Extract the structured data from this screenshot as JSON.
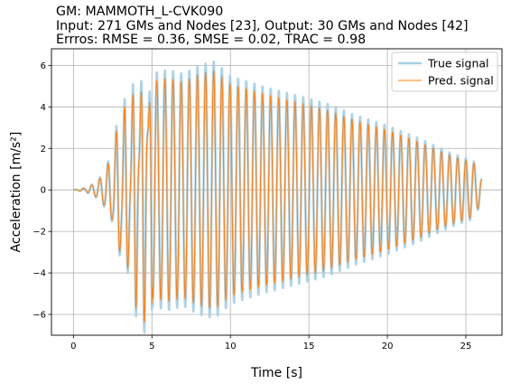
{
  "chart_data": {
    "type": "line",
    "title_lines": [
      "GM: MAMMOTH_L-CVK090",
      "Input: 271 GMs and Nodes [23], Output: 30 GMs and Nodes [42]",
      "Errros: RMSE = 0.36, SMSE = 0.02, TRAC = 0.98"
    ],
    "xlabel": "Time [s]",
    "ylabel": "Acceleration [m/s²]",
    "xlim": [
      -1.4,
      27.3
    ],
    "ylim": [
      -7.0,
      6.8
    ],
    "xticks": [
      0,
      5,
      10,
      15,
      20,
      25
    ],
    "yticks": [
      -6,
      -4,
      -2,
      0,
      2,
      4,
      6
    ],
    "grid": true,
    "legend_position": "top-right",
    "signal": {
      "t_start": 0.0,
      "t_end": 26.0,
      "dominant_frequency_hz": 1.93,
      "envelope": [
        {
          "t": 0.0,
          "amp": 0.0
        },
        {
          "t": 0.8,
          "amp": 0.1
        },
        {
          "t": 1.5,
          "amp": 0.4
        },
        {
          "t": 2.0,
          "amp": 0.9
        },
        {
          "t": 2.5,
          "amp": 1.8
        },
        {
          "t": 3.0,
          "amp": 3.6
        },
        {
          "t": 3.5,
          "amp": 3.8
        },
        {
          "t": 4.0,
          "amp": 5.0
        },
        {
          "t": 4.5,
          "amp": 5.2
        },
        {
          "t": 5.0,
          "amp": 5.6
        },
        {
          "t": 6.0,
          "amp": 5.8
        },
        {
          "t": 7.0,
          "amp": 5.6
        },
        {
          "t": 8.0,
          "amp": 6.0
        },
        {
          "t": 9.0,
          "amp": 6.2
        },
        {
          "t": 10.0,
          "amp": 5.5
        },
        {
          "t": 12.0,
          "amp": 5.0
        },
        {
          "t": 14.0,
          "amp": 4.6
        },
        {
          "t": 16.0,
          "amp": 4.2
        },
        {
          "t": 18.0,
          "amp": 3.6
        },
        {
          "t": 20.0,
          "amp": 3.1
        },
        {
          "t": 22.0,
          "amp": 2.5
        },
        {
          "t": 24.0,
          "amp": 1.8
        },
        {
          "t": 25.5,
          "amp": 1.4
        },
        {
          "t": 26.0,
          "amp": 0.6
        }
      ]
    },
    "series": [
      {
        "name": "True signal",
        "color": "#a6cee3",
        "line_width": 2.5
      },
      {
        "name": "Pred. signal",
        "color": "#ff7f0e",
        "line_width": 1.0
      }
    ]
  }
}
